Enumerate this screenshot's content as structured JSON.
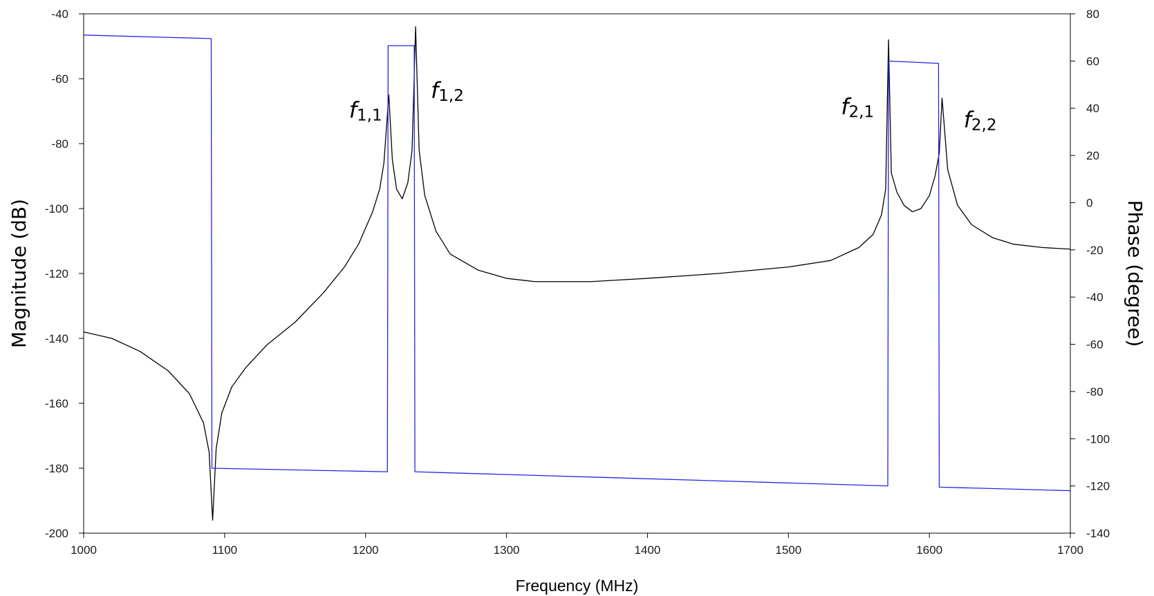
{
  "chart_data": {
    "type": "line",
    "xlabel": "Frequency (MHz)",
    "ylabel_left": "Magnitude (dB)",
    "ylabel_right": "Phase (degree)",
    "xlim": [
      1000,
      1700
    ],
    "ylim_left": [
      -200,
      -40
    ],
    "ylim_right": [
      -140,
      80
    ],
    "xticks": [
      "1000",
      "1100",
      "1200",
      "1300",
      "1400",
      "1500",
      "1600",
      "1700"
    ],
    "yticks_left": [
      "-40",
      "-60",
      "-80",
      "-100",
      "-120",
      "-140",
      "-160",
      "-180",
      "-200"
    ],
    "yticks_right": [
      "80",
      "60",
      "40",
      "20",
      "0",
      "-20",
      "-40",
      "-60",
      "-80",
      "-100",
      "-120",
      "-140"
    ],
    "grid": false,
    "series": [
      {
        "axis": "left",
        "color": "#000000",
        "x": [
          1000,
          1020,
          1040,
          1060,
          1075,
          1085,
          1089,
          1091.5,
          1094,
          1098,
          1105,
          1115,
          1130,
          1150,
          1170,
          1185,
          1195,
          1205,
          1210,
          1213,
          1216.5,
          1219,
          1222,
          1226,
          1230,
          1233,
          1235.5,
          1238,
          1242,
          1250,
          1260,
          1280,
          1300,
          1320,
          1340,
          1360,
          1400,
          1450,
          1500,
          1530,
          1550,
          1560,
          1566,
          1569,
          1571,
          1573,
          1577,
          1582,
          1588,
          1594,
          1600,
          1604,
          1607,
          1609,
          1613,
          1620,
          1630,
          1645,
          1660,
          1680,
          1700
        ],
        "values": [
          -138,
          -140,
          -144,
          -150,
          -157,
          -166,
          -175,
          -196,
          -174,
          -163,
          -155,
          -149,
          -142,
          -135,
          -126,
          -118,
          -111,
          -101,
          -94,
          -86,
          -65,
          -85,
          -94,
          -97,
          -92,
          -82,
          -44,
          -82,
          -96,
          -107,
          -114,
          -119,
          -121.5,
          -122.5,
          -122.5,
          -122.5,
          -121.5,
          -120,
          -118,
          -116,
          -112,
          -108,
          -102,
          -94,
          -48,
          -89,
          -95,
          -99,
          -101,
          -100,
          -96,
          -90,
          -83,
          -66,
          -88,
          -99,
          -105,
          -109,
          -111,
          -112,
          -112.5
        ]
      },
      {
        "axis": "right",
        "color": "#2323e8",
        "x": [
          1000,
          1090.5,
          1091,
          1215.5,
          1216,
          1234.5,
          1235,
          1570.5,
          1571,
          1606.5,
          1607,
          1700
        ],
        "values": [
          71,
          69.5,
          -112.5,
          -114,
          66.5,
          66.5,
          -114,
          -120,
          60,
          59,
          -120.5,
          -122
        ]
      }
    ],
    "annotations": [
      {
        "base": "f",
        "sub": "1,1",
        "x": 1200,
        "y": -72
      },
      {
        "base": "f",
        "sub": "1,2",
        "x": 1258,
        "y": -66
      },
      {
        "base": "f",
        "sub": "2,1",
        "x": 1549,
        "y": -71
      },
      {
        "base": "f",
        "sub": "2,2",
        "x": 1636,
        "y": -75
      }
    ]
  }
}
